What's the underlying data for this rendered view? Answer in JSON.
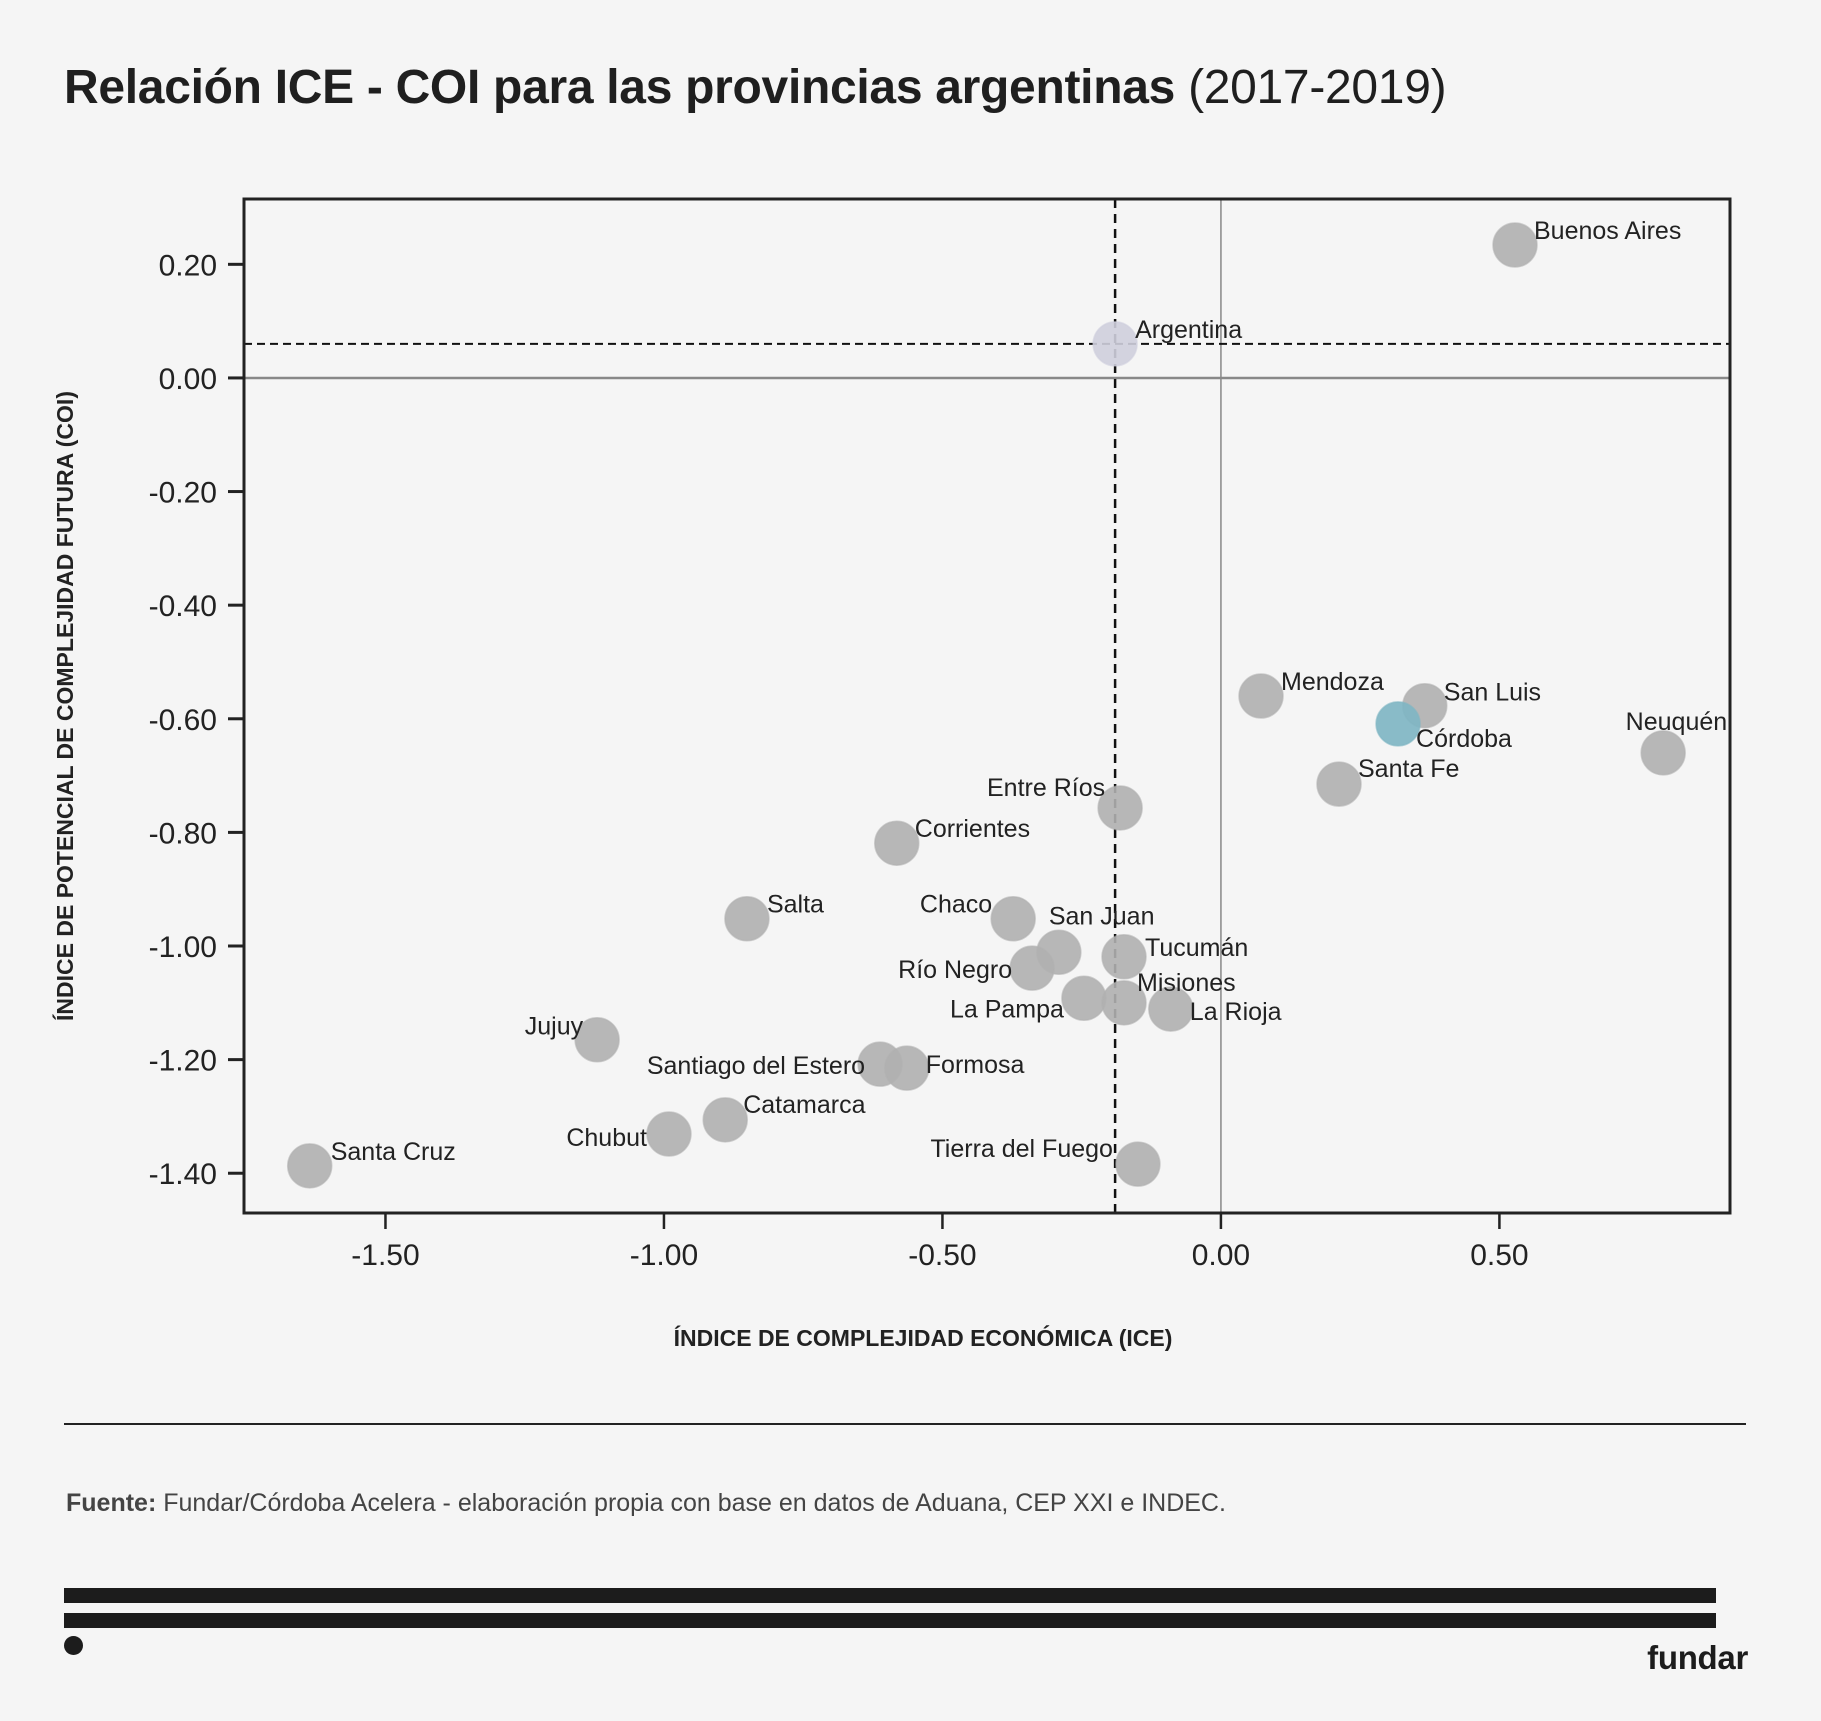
{
  "title": {
    "bold": "Relación ICE - COI para las provincias argentinas",
    "regular": "(2017-2019)"
  },
  "colors": {
    "background": "#f5f5f5",
    "point_default": "#b0b0b0",
    "point_reference": "#cfcfdd",
    "point_highlight": "#7fb5c3",
    "axis": "#222222",
    "zero_line": "#888888"
  },
  "chart_data": {
    "type": "scatter",
    "title": "Relación ICE - COI para las provincias argentinas (2017-2019)",
    "xlabel": "ÍNDICE DE COMPLEJIDAD ECONÓMICA (ICE)",
    "ylabel": "ÍNDICE DE POTENCIAL DE COMPLEJIDAD FUTURA (COI)",
    "xlim": [
      -1.754,
      0.914
    ],
    "ylim": [
      -1.47,
      0.315
    ],
    "x_ticks": [
      -1.5,
      -1.0,
      -0.5,
      0.0,
      0.5
    ],
    "x_tick_labels": [
      "-1.50",
      "-1.00",
      "-0.50",
      "0.00",
      "0.50"
    ],
    "y_ticks": [
      0.2,
      0.0,
      -0.2,
      -0.4,
      -0.6,
      -0.8,
      -1.0,
      -1.2,
      -1.4
    ],
    "y_tick_labels": [
      "0.20",
      "0.00",
      "-0.20",
      "-0.40",
      "-0.60",
      "-0.80",
      "-1.00",
      "-1.20",
      "-1.40"
    ],
    "grid": false,
    "zero_lines": true,
    "reference_lines": {
      "x": -0.19,
      "y": 0.06,
      "style": "dashed"
    },
    "points": [
      {
        "name": "Buenos Aires",
        "x": 0.528,
        "y": 0.234,
        "group": "default",
        "label_side": "right"
      },
      {
        "name": "Argentina",
        "x": -0.19,
        "y": 0.06,
        "group": "reference",
        "label_side": "right"
      },
      {
        "name": "Mendoza",
        "x": 0.072,
        "y": -0.56,
        "group": "default",
        "label_side": "right"
      },
      {
        "name": "San Luis",
        "x": 0.366,
        "y": -0.577,
        "group": "default",
        "label_side": "right"
      },
      {
        "name": "Córdoba",
        "x": 0.318,
        "y": -0.609,
        "group": "highlight",
        "label_side": "right"
      },
      {
        "name": "Santa Fe",
        "x": 0.212,
        "y": -0.715,
        "group": "default",
        "label_side": "right"
      },
      {
        "name": "Neuquén",
        "x": 0.794,
        "y": -0.66,
        "group": "default",
        "label_side": "left"
      },
      {
        "name": "Entre Ríos",
        "x": -0.181,
        "y": -0.757,
        "group": "default",
        "label_side": "left"
      },
      {
        "name": "Corrientes",
        "x": -0.582,
        "y": -0.819,
        "group": "default",
        "label_side": "right"
      },
      {
        "name": "Salta",
        "x": -0.851,
        "y": -0.952,
        "group": "default",
        "label_side": "right"
      },
      {
        "name": "Chaco",
        "x": -0.373,
        "y": -0.952,
        "group": "default",
        "label_side": "left"
      },
      {
        "name": "San Juan",
        "x": -0.291,
        "y": -1.011,
        "group": "default",
        "label_side": "right"
      },
      {
        "name": "Río Negro",
        "x": -0.339,
        "y": -1.039,
        "group": "default",
        "label_side": "left"
      },
      {
        "name": "Tucumán",
        "x": -0.174,
        "y": -1.019,
        "group": "default",
        "label_side": "right"
      },
      {
        "name": "La Pampa",
        "x": -0.246,
        "y": -1.092,
        "group": "default",
        "label_side": "left"
      },
      {
        "name": "Misiones",
        "x": -0.174,
        "y": -1.1,
        "group": "default",
        "label_side": "right"
      },
      {
        "name": "La Rioja",
        "x": -0.09,
        "y": -1.111,
        "group": "default",
        "label_side": "right"
      },
      {
        "name": "Jujuy",
        "x": -1.12,
        "y": -1.165,
        "group": "default",
        "label_side": "left"
      },
      {
        "name": "Santiago del Estero",
        "x": -0.612,
        "y": -1.208,
        "group": "default",
        "label_side": "left"
      },
      {
        "name": "Formosa",
        "x": -0.564,
        "y": -1.215,
        "group": "default",
        "label_side": "right"
      },
      {
        "name": "Catamarca",
        "x": -0.89,
        "y": -1.306,
        "group": "default",
        "label_side": "right"
      },
      {
        "name": "Chubut",
        "x": -0.991,
        "y": -1.331,
        "group": "default",
        "label_side": "left"
      },
      {
        "name": "Santa Cruz",
        "x": -1.636,
        "y": -1.387,
        "group": "default",
        "label_side": "right"
      },
      {
        "name": "Tierra del Fuego",
        "x": -0.149,
        "y": -1.384,
        "group": "default",
        "label_side": "left"
      }
    ]
  },
  "footer": {
    "source_label": "Fuente:",
    "source_text": " Fundar/Córdoba Acelera - elaboración propia con base en datos de Aduana, CEP XXI e INDEC.",
    "brand": "fundar"
  }
}
